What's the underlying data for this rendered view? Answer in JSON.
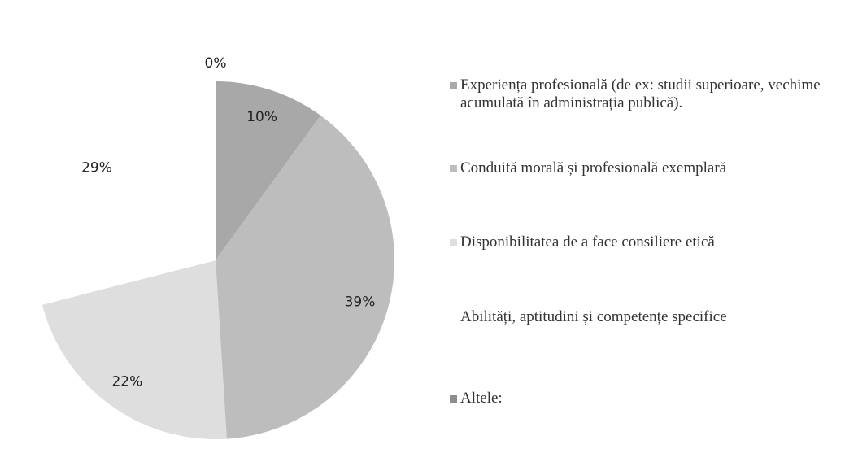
{
  "chart_data": {
    "type": "pie",
    "categories": [
      "Experiența profesională (de ex: studii superioare, vechime acumulată în administrația publică).",
      "Conduită morală și profesională exemplară",
      "Disponibilitatea de a face consiliere etică",
      "Abilități, aptitudini și competențe specifice",
      "Altele:"
    ],
    "values": [
      10,
      39,
      22,
      29,
      0
    ],
    "value_labels": [
      "10%",
      "39%",
      "22%",
      "29%",
      "0%"
    ],
    "colors": [
      "#a8a8a8",
      "#bdbdbd",
      "#dedede",
      "#ffffff",
      "#8c8c8c"
    ],
    "legend": "right"
  }
}
